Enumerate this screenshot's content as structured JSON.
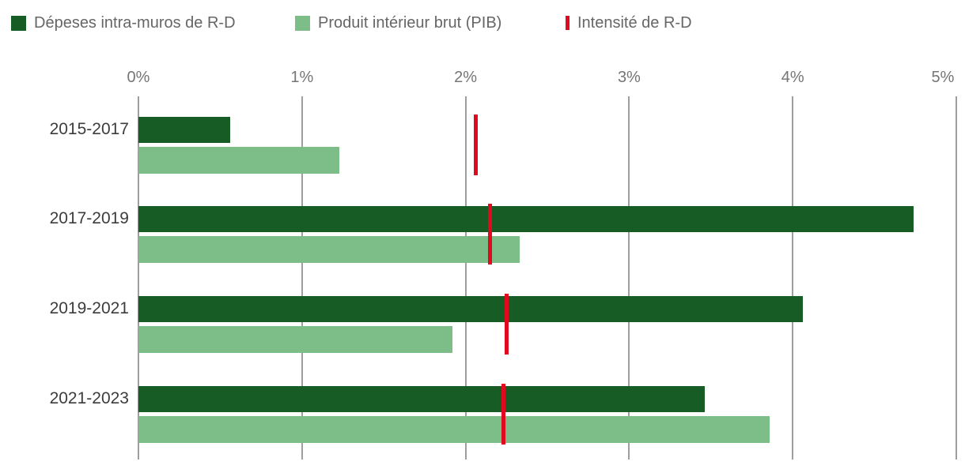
{
  "legend": {
    "text_color": "#666666",
    "items": [
      {
        "label": "Dépeses intra-muros de R-D",
        "color": "#175b25",
        "marker": "square"
      },
      {
        "label": "Produit intérieur brut (PIB)",
        "color": "#7cbd88",
        "marker": "square"
      },
      {
        "label": "Intensité de R-D",
        "color": "#e0091d",
        "marker": "bar"
      }
    ]
  },
  "chart_data": {
    "type": "bar",
    "orientation": "horizontal",
    "title": "",
    "xlabel": "",
    "ylabel": "",
    "categories": [
      "2015-2017",
      "2017-2019",
      "2019-2021",
      "2021-2023"
    ],
    "series": [
      {
        "name": "Dépeses intra-muros de R-D",
        "render": "bar",
        "color": "#175b25",
        "values": [
          0.56,
          4.74,
          4.06,
          3.46
        ]
      },
      {
        "name": "Produit intérieur brut (PIB)",
        "render": "bar",
        "color": "#7cbd88",
        "values": [
          1.23,
          2.33,
          1.92,
          3.86
        ]
      },
      {
        "name": "Intensité de R-D",
        "render": "marker",
        "color": "#e0091d",
        "values": [
          2.06,
          2.15,
          2.25,
          2.23
        ]
      }
    ],
    "xlim": [
      0,
      5
    ],
    "xticks": [
      "0%",
      "1%",
      "2%",
      "3%",
      "4%",
      "5%"
    ],
    "xtick_values": [
      0,
      1,
      2,
      3,
      4,
      5
    ],
    "grid": true,
    "axis_position": "top",
    "legend_position": "top",
    "gridline_color": "#9e9e9e",
    "axis_label_color": "#757575",
    "category_label_color": "#3c3c3c"
  }
}
